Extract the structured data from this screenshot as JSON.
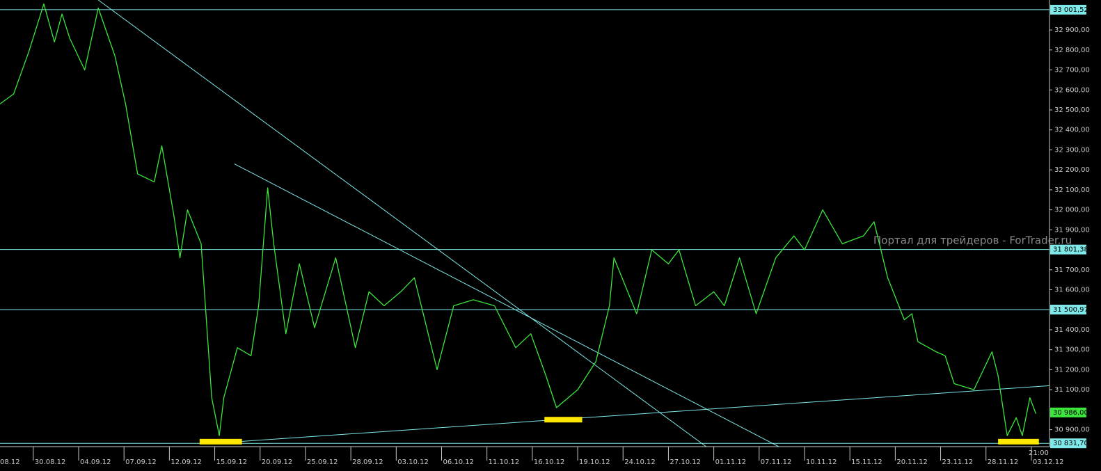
{
  "chart_data": {
    "type": "line",
    "color": "#3ce63c",
    "x": [
      0.8,
      1.7,
      2.7,
      3.7,
      4.4,
      4.9,
      5.4,
      6.4,
      7.3,
      8.4,
      9.1,
      9.9,
      11.0,
      11.5,
      12.3,
      12.7,
      13.2,
      14.1,
      14.8,
      15.3,
      15.6,
      16.5,
      17.4,
      17.9,
      18.5,
      18.9,
      19.7,
      20.6,
      21.6,
      23.0,
      24.3,
      25.2,
      26.2,
      27.3,
      28.2,
      29.7,
      30.8,
      32.1,
      33.5,
      34.9,
      35.9,
      36.9,
      37.6,
      39.0,
      40.2,
      41.1,
      41.4,
      42.9,
      43.9,
      45.0,
      45.7,
      46.8,
      48.0,
      48.7,
      49.7,
      50.8,
      52.1,
      53.3,
      54.0,
      55.2,
      56.5,
      57.9,
      58.6,
      59.5,
      60.6,
      61.1,
      61.5,
      62.7,
      63.3,
      63.9,
      65.2,
      66.4,
      66.8,
      67.4,
      68.0,
      68.4,
      68.9,
      69.3
    ],
    "values": [
      32530,
      32580,
      32790,
      33030,
      32840,
      32980,
      32860,
      32700,
      33010,
      32770,
      32530,
      32180,
      32140,
      32320,
      31970,
      31760,
      32000,
      31830,
      31060,
      30870,
      31060,
      31310,
      31270,
      31520,
      32110,
      31830,
      31380,
      31730,
      31410,
      31760,
      31310,
      31590,
      31520,
      31590,
      31660,
      31200,
      31520,
      31550,
      31520,
      31310,
      31380,
      31170,
      31010,
      31100,
      31240,
      31520,
      31760,
      31480,
      31800,
      31730,
      31800,
      31520,
      31590,
      31520,
      31760,
      31480,
      31760,
      31870,
      31800,
      32000,
      31830,
      31870,
      31940,
      31660,
      31450,
      31480,
      31340,
      31290,
      31270,
      31130,
      31100,
      31290,
      31170,
      30870,
      30960,
      30870,
      31060,
      30980
    ],
    "xlim": [
      0.8,
      70.2
    ],
    "ylim": [
      30815,
      33050
    ],
    "xticks": [
      {
        "value": 0,
        "label": "08.12"
      },
      {
        "value": 3,
        "label": "30.08.12"
      },
      {
        "value": 6,
        "label": "04.09.12"
      },
      {
        "value": 9,
        "label": "07.09.12"
      },
      {
        "value": 12,
        "label": "12.09.12"
      },
      {
        "value": 15,
        "label": "15.09.12"
      },
      {
        "value": 18,
        "label": "20.09.12"
      },
      {
        "value": 21,
        "label": "25.09.12"
      },
      {
        "value": 24,
        "label": "28.09.12"
      },
      {
        "value": 27,
        "label": "03.10.12"
      },
      {
        "value": 30,
        "label": "06.10.12"
      },
      {
        "value": 33,
        "label": "11.10.12"
      },
      {
        "value": 36,
        "label": "16.10.12"
      },
      {
        "value": 39,
        "label": "19.10.12"
      },
      {
        "value": 42,
        "label": "24.10.12"
      },
      {
        "value": 45,
        "label": "27.10.12"
      },
      {
        "value": 48,
        "label": "01.11.12"
      },
      {
        "value": 51,
        "label": "07.11.12"
      },
      {
        "value": 54,
        "label": "10.11.12"
      },
      {
        "value": 57,
        "label": "15.11.12"
      },
      {
        "value": 60,
        "label": "20.11.12"
      },
      {
        "value": 63,
        "label": "23.11.12"
      },
      {
        "value": 66,
        "label": "28.11.12"
      },
      {
        "value": 69,
        "label": "03.12.12"
      }
    ],
    "yticks": [
      {
        "value": 30900,
        "label": "30 900,00"
      },
      {
        "value": 31100,
        "label": "31 100,00"
      },
      {
        "value": 31200,
        "label": "31 200,00"
      },
      {
        "value": 31300,
        "label": "31 300,00"
      },
      {
        "value": 31400,
        "label": "31 400,00"
      },
      {
        "value": 31600,
        "label": "31 600,00"
      },
      {
        "value": 31700,
        "label": "31 700,00"
      },
      {
        "value": 31900,
        "label": "31 900,00"
      },
      {
        "value": 32000,
        "label": "32 000,00"
      },
      {
        "value": 32100,
        "label": "32 100,00"
      },
      {
        "value": 32200,
        "label": "32 200,00"
      },
      {
        "value": 32300,
        "label": "32 300,00"
      },
      {
        "value": 32400,
        "label": "32 400,00"
      },
      {
        "value": 32500,
        "label": "32 500,00"
      },
      {
        "value": 32600,
        "label": "32 600,00"
      },
      {
        "value": 32700,
        "label": "32 700,00"
      },
      {
        "value": 32800,
        "label": "32 800,00"
      },
      {
        "value": 32900,
        "label": "32 900,00"
      }
    ],
    "levels": [
      {
        "value": 33001.52,
        "label": "33 001,52"
      },
      {
        "value": 31801.38,
        "label": "31 801,38"
      },
      {
        "value": 31500.97,
        "label": "31 500,97"
      },
      {
        "value": 30831.7,
        "label": "30 831,70"
      }
    ],
    "level_color": "#7fe8e8",
    "last_price": {
      "value": 30986.0,
      "label": "30 986,00"
    },
    "last_price_color": "#3ce63c",
    "trendlines": [
      {
        "x": [
          7.3,
          47.5
        ],
        "y": [
          33050,
          30815
        ]
      },
      {
        "x": [
          16.3,
          52.3
        ],
        "y": [
          32230,
          30815
        ]
      },
      {
        "x": [
          16.5,
          70.2
        ],
        "y": [
          30840,
          31120
        ]
      }
    ],
    "highlights": [
      {
        "x": [
          14.0,
          16.8
        ],
        "y": 30840
      },
      {
        "x": [
          36.8,
          39.3
        ],
        "y": 30950
      },
      {
        "x": [
          66.8,
          69.5
        ],
        "y": 30840
      }
    ],
    "highlight_color": "#ffe600",
    "time_label": "21:00",
    "watermark": "Портал для трейдеров - ForTrader.ru"
  }
}
